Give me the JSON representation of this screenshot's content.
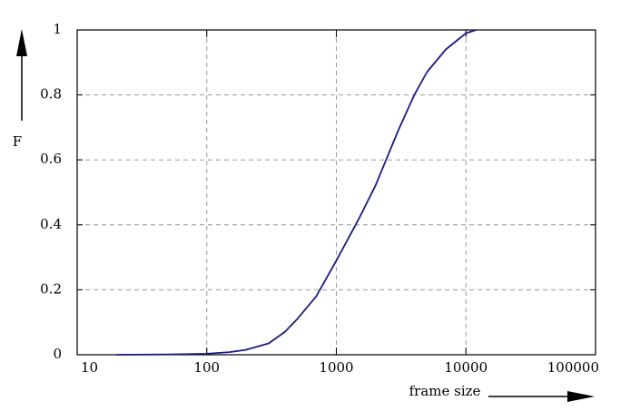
{
  "chart_data": {
    "type": "line",
    "x": [
      20,
      50,
      100,
      150,
      200,
      300,
      400,
      500,
      700,
      1000,
      1500,
      2000,
      3000,
      4000,
      5000,
      7000,
      10000,
      12000
    ],
    "series": [
      {
        "color": "#1c1c80",
        "values": [
          0,
          0.001,
          0.003,
          0.008,
          0.015,
          0.035,
          0.07,
          0.11,
          0.18,
          0.29,
          0.42,
          0.52,
          0.69,
          0.8,
          0.87,
          0.94,
          0.99,
          1.0
        ]
      }
    ],
    "xlabel": "frame size",
    "ylabel": "F",
    "xscale": "log",
    "xlim": [
      10,
      100000
    ],
    "xticks": [
      10,
      100,
      1000,
      10000,
      100000
    ],
    "ylim": [
      0,
      1
    ],
    "yticks": [
      0,
      0.2,
      0.4,
      0.6,
      0.8,
      1
    ],
    "grid": true
  }
}
